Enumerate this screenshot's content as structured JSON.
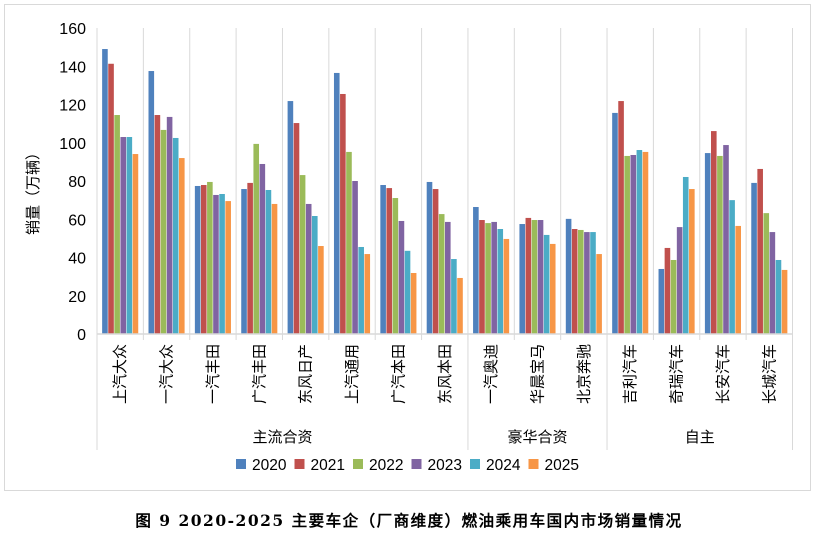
{
  "chart_data": {
    "type": "bar",
    "title": "图 9 2020-2025 主要车企（厂商维度）燃油乘用车国内市场销量情况",
    "ylabel": "销量（万辆）",
    "xlabel": "",
    "ylim": [
      0,
      160
    ],
    "yticks": [
      0,
      20,
      40,
      60,
      80,
      100,
      120,
      140,
      160
    ],
    "grid": "vertical category separators",
    "legend_position": "bottom",
    "categories": [
      "上汽大众",
      "一汽大众",
      "一汽丰田",
      "广汽丰田",
      "东风日产",
      "上汽通用",
      "广汽本田",
      "东风本田",
      "一汽奥迪",
      "华晨宝马",
      "北京奔驰",
      "吉利汽车",
      "奇瑞汽车",
      "长安汽车",
      "长城汽车"
    ],
    "groups": [
      {
        "label": "主流合资",
        "count": 8
      },
      {
        "label": "豪华合资",
        "count": 3
      },
      {
        "label": "自主",
        "count": 4
      }
    ],
    "series": [
      {
        "name": "2020",
        "color": "#4F81BD",
        "values": [
          149.0,
          137.5,
          77.4,
          75.8,
          121.8,
          136.5,
          77.9,
          79.5,
          66.4,
          57.5,
          60.2,
          115.6,
          34.0,
          94.6,
          79.0
        ]
      },
      {
        "name": "2021",
        "color": "#C0504D",
        "values": [
          141.3,
          114.5,
          77.9,
          79.0,
          110.3,
          125.5,
          76.3,
          75.8,
          59.6,
          60.7,
          54.9,
          121.8,
          45.0,
          106.1,
          86.3
        ]
      },
      {
        "name": "2022",
        "color": "#9BBB59",
        "values": [
          114.5,
          106.7,
          79.5,
          99.4,
          83.1,
          95.2,
          71.1,
          62.7,
          58.0,
          59.6,
          54.4,
          93.1,
          38.7,
          93.1,
          63.2
        ]
      },
      {
        "name": "2023",
        "color": "#8064A2",
        "values": [
          103.0,
          113.5,
          72.7,
          88.9,
          68.0,
          80.0,
          59.1,
          58.6,
          58.6,
          59.6,
          53.3,
          93.6,
          55.9,
          98.8,
          53.3
        ]
      },
      {
        "name": "2024",
        "color": "#4BACC6",
        "values": [
          103.0,
          102.5,
          73.2,
          75.3,
          61.7,
          45.5,
          43.5,
          39.2,
          54.9,
          51.8,
          53.3,
          96.2,
          82.1,
          70.0,
          38.7
        ]
      },
      {
        "name": "2025",
        "color": "#F79646",
        "values": [
          94.1,
          92.0,
          69.5,
          68.0,
          46.0,
          41.8,
          31.9,
          29.3,
          49.7,
          47.1,
          41.8,
          95.2,
          75.8,
          56.5,
          33.5
        ]
      }
    ]
  }
}
